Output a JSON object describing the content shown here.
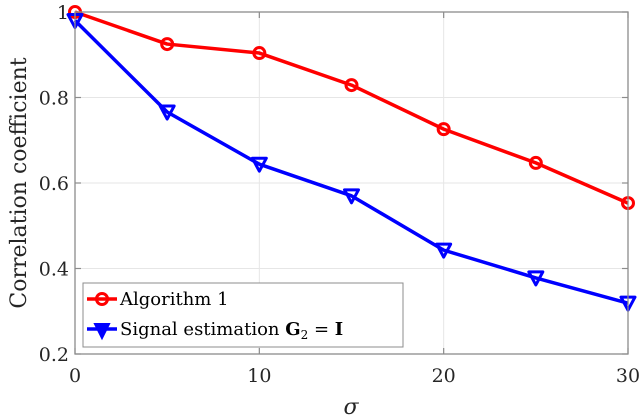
{
  "chart_data": {
    "type": "line",
    "title": "",
    "xlabel": "σ",
    "ylabel": "Correlation coefficient",
    "xlim": [
      0,
      30
    ],
    "ylim": [
      0.2,
      1.0
    ],
    "xticks": [
      0,
      10,
      20,
      30
    ],
    "yticks": [
      0.2,
      0.4,
      0.6,
      0.8,
      1.0
    ],
    "xtick_labels": [
      "0",
      "10",
      "20",
      "30"
    ],
    "ytick_labels": [
      "0.2",
      "0.4",
      "0.6",
      "0.8",
      "1"
    ],
    "grid": true,
    "legend_position": "lower left",
    "x": [
      0,
      5,
      10,
      15,
      20,
      25,
      30
    ],
    "series": [
      {
        "name": "Algorithm 1",
        "color": "#ff0000",
        "marker": "circle",
        "values": [
          1.0,
          0.925,
          0.904,
          0.829,
          0.726,
          0.647,
          0.553
        ]
      },
      {
        "name": "Signal estimation G2 = I",
        "color": "#0000ff",
        "marker": "triangle-down",
        "values": [
          0.98,
          0.766,
          0.644,
          0.57,
          0.443,
          0.378,
          0.319
        ]
      }
    ]
  },
  "legend": {
    "item1": "Algorithm 1",
    "item2_prefix": "Signal estimation ",
    "item2_bold": "G",
    "item2_sub": "2",
    "item2_eq": " = ",
    "item2_rhs": "I"
  },
  "axes": {
    "xlabel": "σ",
    "ylabel": "Correlation coefficient"
  }
}
